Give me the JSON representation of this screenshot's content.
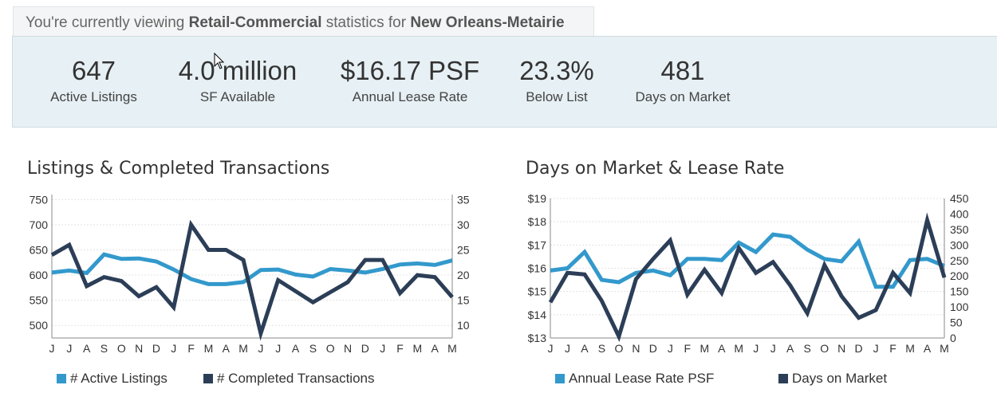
{
  "header": {
    "prefix": "You're currently viewing ",
    "property_type": "Retail-Commercial",
    "middle": " statistics for ",
    "market": "New Orleans-Metairie"
  },
  "stats": [
    {
      "value": "647",
      "label": "Active Listings"
    },
    {
      "value": "4.0 million",
      "label": "SF Available"
    },
    {
      "value": "$16.17 PSF",
      "label": "Annual Lease Rate"
    },
    {
      "value": "23.3%",
      "label": "Below List"
    },
    {
      "value": "481",
      "label": "Days on Market"
    }
  ],
  "colors": {
    "light_blue": "#3399cc",
    "dark_navy": "#2c3e57"
  },
  "chart_data": [
    {
      "type": "line",
      "title": "Listings & Completed Transactions",
      "categories": [
        "J",
        "J",
        "A",
        "S",
        "O",
        "N",
        "D",
        "J",
        "F",
        "M",
        "A",
        "M",
        "J",
        "J",
        "A",
        "S",
        "O",
        "N",
        "D",
        "J",
        "F",
        "M",
        "A",
        "M"
      ],
      "y_left": {
        "ticks": [
          "750",
          "700",
          "650",
          "600",
          "550",
          "500"
        ],
        "lim": [
          475,
          760
        ]
      },
      "y_right": {
        "ticks": [
          "35",
          "30",
          "25",
          "20",
          "15",
          "10"
        ],
        "lim": [
          7.5,
          36
        ]
      },
      "series": [
        {
          "name": "# Active Listings",
          "axis": "left",
          "color": "#3399cc",
          "values": [
            605,
            609,
            604,
            641,
            632,
            633,
            627,
            611,
            592,
            582,
            582,
            586,
            610,
            611,
            601,
            597,
            612,
            609,
            605,
            612,
            621,
            623,
            620,
            629
          ]
        },
        {
          "name": "# Completed Transactions",
          "axis": "right",
          "color": "#2c3e57",
          "values": [
            24,
            26,
            17.8,
            19.6,
            18.8,
            15.8,
            17.6,
            13.6,
            30,
            25,
            25,
            23,
            8.4,
            19,
            16.8,
            14.6,
            16.6,
            18.6,
            23,
            23,
            16.4,
            20,
            19.6,
            15.6
          ]
        }
      ],
      "legend": "bottom-left"
    },
    {
      "type": "line",
      "title": "Days on Market & Lease Rate",
      "categories": [
        "J",
        "J",
        "A",
        "S",
        "O",
        "N",
        "D",
        "J",
        "F",
        "M",
        "A",
        "M",
        "J",
        "J",
        "A",
        "S",
        "O",
        "N",
        "D",
        "J",
        "F",
        "M",
        "A",
        "M"
      ],
      "y_left": {
        "ticks": [
          "$19",
          "$18",
          "$17",
          "$16",
          "$15",
          "$14",
          "$13"
        ],
        "lim": [
          13,
          19
        ]
      },
      "y_right": {
        "ticks": [
          "450",
          "400",
          "350",
          "300",
          "250",
          "200",
          "150",
          "100",
          "50",
          "0"
        ],
        "lim": [
          0,
          450
        ]
      },
      "series": [
        {
          "name": "Annual Lease Rate PSF",
          "axis": "left",
          "color": "#3399cc",
          "values": [
            15.9,
            16.0,
            16.7,
            15.5,
            15.4,
            15.8,
            15.9,
            15.7,
            16.4,
            16.4,
            16.35,
            17.1,
            16.7,
            17.45,
            17.35,
            16.8,
            16.4,
            16.3,
            17.15,
            15.2,
            15.2,
            16.35,
            16.4,
            16.1
          ]
        },
        {
          "name": "Days on Market",
          "axis": "right",
          "color": "#2c3e57",
          "values": [
            115,
            210,
            205,
            120,
            5,
            190,
            255,
            315,
            140,
            220,
            145,
            290,
            210,
            245,
            170,
            80,
            235,
            135,
            65,
            90,
            210,
            145,
            380,
            195
          ]
        }
      ],
      "legend": "bottom-left"
    }
  ]
}
